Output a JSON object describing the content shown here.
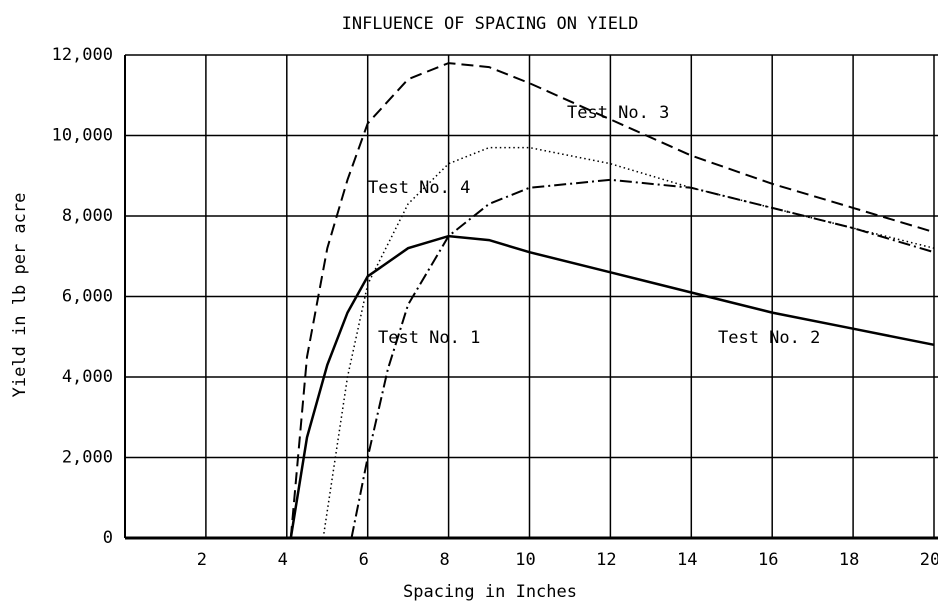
{
  "chart_data": {
    "type": "line",
    "title": "INFLUENCE OF SPACING ON YIELD",
    "xlabel": "Spacing in Inches",
    "ylabel": "Yield in lb per acre",
    "xlim": [
      0,
      20
    ],
    "ylim": [
      0,
      12000
    ],
    "xticks": [
      2,
      4,
      6,
      8,
      10,
      12,
      14,
      16,
      18,
      20
    ],
    "yticks": [
      0,
      {
        "value": 2000,
        "label": "2,000"
      },
      {
        "value": 4000,
        "label": "4,000"
      },
      {
        "value": 6000,
        "label": "6,000"
      },
      {
        "value": 8000,
        "label": "8,000"
      },
      {
        "value": 10000,
        "label": "10,000"
      },
      {
        "value": 12000,
        "label": "12,000"
      }
    ],
    "grid": true,
    "series": [
      {
        "name": "Test No. 1",
        "color": "#000000",
        "dash": "dashdot",
        "x": [
          5.6,
          6,
          6.5,
          7,
          8,
          9,
          10,
          12,
          14,
          16,
          18,
          20
        ],
        "values": [
          0,
          2000,
          4200,
          5800,
          7500,
          8300,
          8700,
          8900,
          8700,
          8200,
          7700,
          7100
        ]
      },
      {
        "name": "Test No. 2",
        "color": "#000000",
        "dash": "solid",
        "x": [
          4.1,
          4.5,
          5,
          5.5,
          6,
          7,
          8,
          9,
          10,
          12,
          14,
          16,
          18,
          20
        ],
        "values": [
          0,
          2500,
          4300,
          5600,
          6500,
          7200,
          7500,
          7400,
          7100,
          6600,
          6100,
          5600,
          5200,
          4800
        ]
      },
      {
        "name": "Test No. 3",
        "color": "#000000",
        "dash": "dashed",
        "x": [
          4.1,
          4.5,
          5,
          5.5,
          6,
          7,
          8,
          9,
          10,
          12,
          14,
          16,
          18,
          20
        ],
        "values": [
          0,
          4500,
          7200,
          8900,
          10300,
          11400,
          11800,
          11700,
          11300,
          10400,
          9500,
          8800,
          8200,
          7600
        ]
      },
      {
        "name": "Test No. 4",
        "color": "#000000",
        "dash": "dotted",
        "x": [
          4.9,
          5.5,
          6,
          7,
          8,
          9,
          10,
          12,
          14,
          16,
          18,
          20
        ],
        "values": [
          0,
          4000,
          6300,
          8300,
          9300,
          9700,
          9700,
          9300,
          8700,
          8200,
          7700,
          7200
        ]
      }
    ]
  }
}
